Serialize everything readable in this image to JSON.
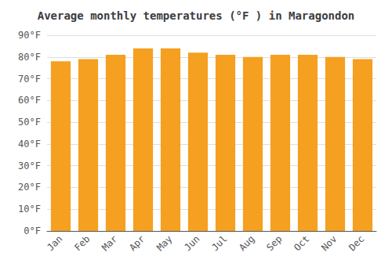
{
  "chart_data": {
    "type": "bar",
    "title": "Average monthly temperatures (°F ) in Maragondon",
    "categories": [
      "Jan",
      "Feb",
      "Mar",
      "Apr",
      "May",
      "Jun",
      "Jul",
      "Aug",
      "Sep",
      "Oct",
      "Nov",
      "Dec"
    ],
    "values": [
      78,
      79,
      81,
      84,
      84,
      82,
      81,
      80,
      81,
      81,
      80,
      79
    ],
    "color": "#F5A020",
    "ylim": [
      0,
      90
    ],
    "yticks": [
      {
        "value": 0,
        "label": "0°F"
      },
      {
        "value": 10,
        "label": "10°F"
      },
      {
        "value": 20,
        "label": "20°F"
      },
      {
        "value": 30,
        "label": "30°F"
      },
      {
        "value": 40,
        "label": "40°F"
      },
      {
        "value": 50,
        "label": "50°F"
      },
      {
        "value": 60,
        "label": "60°F"
      },
      {
        "value": 70,
        "label": "70°F"
      },
      {
        "value": 80,
        "label": "80°F"
      },
      {
        "value": 90,
        "label": "90°F"
      }
    ],
    "grid": true
  }
}
